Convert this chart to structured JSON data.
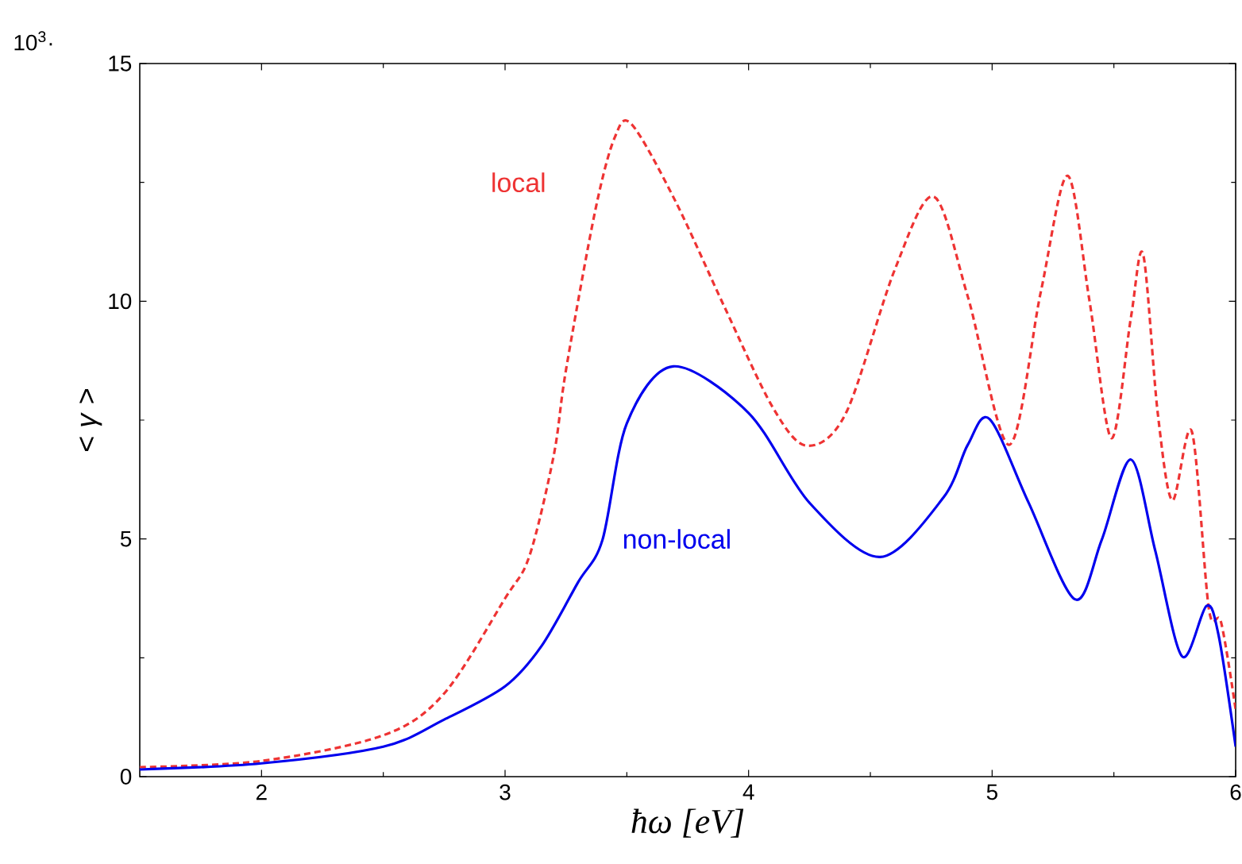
{
  "chart_data": {
    "type": "line",
    "xlabel": "*ħω*  *[eV]*",
    "ylabel": "< *γ* >",
    "annotations": [
      "10$^{3}$·"
    ],
    "xlim": [
      1.5,
      6
    ],
    "ylim": [
      0,
      15
    ],
    "xticks": [
      2,
      3,
      4,
      5,
      6
    ],
    "yticks": [
      0,
      5,
      10,
      15
    ],
    "grid": false,
    "marker": "none",
    "series": [
      {
        "name": "local",
        "color": "#ee3333",
        "line_style": "dashed",
        "x": [
          1.5,
          2.0,
          2.5,
          2.75,
          3.0,
          3.1,
          3.2,
          3.25,
          3.37,
          3.45,
          3.52,
          3.7,
          3.9,
          4.1,
          4.24,
          4.4,
          4.6,
          4.76,
          4.9,
          5.07,
          5.2,
          5.31,
          5.4,
          5.49,
          5.57,
          5.62,
          5.68,
          5.74,
          5.82,
          5.89,
          5.94,
          6.0
        ],
        "values": [
          0.2,
          0.33,
          0.87,
          1.75,
          3.75,
          4.64,
          6.76,
          8.55,
          11.9,
          13.44,
          13.72,
          12.1,
          9.89,
          7.76,
          6.96,
          7.65,
          10.66,
          12.2,
          10.1,
          6.98,
          10.2,
          12.64,
          10.0,
          7.12,
          9.66,
          10.99,
          7.65,
          5.81,
          7.26,
          3.53,
          3.25,
          1.41
        ]
      },
      {
        "name": "non-local",
        "color": "#0000ee",
        "line_style": "solid",
        "x": [
          1.5,
          2.0,
          2.5,
          2.75,
          3.0,
          3.15,
          3.3,
          3.4,
          3.5,
          3.69,
          4.0,
          4.25,
          4.54,
          4.8,
          4.9,
          4.99,
          5.15,
          5.34,
          5.45,
          5.57,
          5.67,
          5.78,
          5.88,
          5.93,
          6.0
        ],
        "values": [
          0.15,
          0.28,
          0.63,
          1.2,
          1.9,
          2.75,
          4.09,
          4.98,
          7.43,
          8.63,
          7.65,
          5.76,
          4.62,
          5.87,
          6.98,
          7.52,
          5.76,
          3.73,
          4.98,
          6.67,
          4.75,
          2.53,
          3.59,
          2.97,
          0.63
        ]
      }
    ]
  }
}
